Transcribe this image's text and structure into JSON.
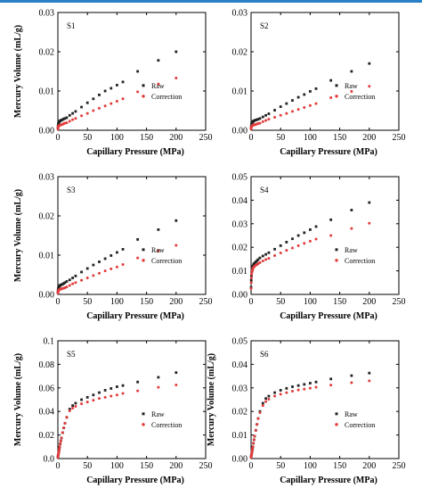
{
  "colors": {
    "raw": "#222222",
    "correction": "#e23b3b",
    "top_bar": "#2a7fc9"
  },
  "chart_data": [
    {
      "type": "scatter",
      "panel_label": "S1",
      "xlabel": "Capillary Pressure (MPa)",
      "ylabel": "Mercury Volume (mL/g)",
      "xlim": [
        0,
        250
      ],
      "ylim": [
        0,
        0.03
      ],
      "x_ticks": [
        "0",
        "50",
        "100",
        "150",
        "200",
        "250"
      ],
      "y_ticks": [
        "0.00",
        "0.01",
        "0.02",
        "0.03"
      ],
      "legend": {
        "position": "right",
        "entries": [
          "Raw",
          "Correction"
        ]
      },
      "series": [
        {
          "name": "Raw",
          "x": [
            0.1,
            0.3,
            0.6,
            1,
            1.5,
            2,
            2.5,
            3,
            4,
            5,
            6,
            8,
            10,
            12,
            15,
            20,
            25,
            30,
            40,
            50,
            60,
            70,
            80,
            90,
            100,
            110,
            135,
            170,
            200
          ],
          "y": [
            0.0005,
            0.001,
            0.0015,
            0.0018,
            0.002,
            0.0021,
            0.0022,
            0.0023,
            0.0024,
            0.0025,
            0.0026,
            0.0027,
            0.0029,
            0.003,
            0.0032,
            0.0038,
            0.0043,
            0.0048,
            0.0059,
            0.007,
            0.008,
            0.009,
            0.01,
            0.0107,
            0.0115,
            0.0123,
            0.015,
            0.0178,
            0.02
          ]
        },
        {
          "name": "Correction",
          "x": [
            0.1,
            0.3,
            0.6,
            1,
            1.5,
            2,
            2.5,
            3,
            4,
            5,
            6,
            8,
            10,
            12,
            15,
            20,
            25,
            30,
            40,
            50,
            60,
            70,
            80,
            90,
            100,
            110,
            135,
            170,
            200
          ],
          "y": [
            0.0003,
            0.0005,
            0.0008,
            0.001,
            0.0011,
            0.0012,
            0.0012,
            0.0013,
            0.0013,
            0.0014,
            0.0014,
            0.0015,
            0.0017,
            0.0018,
            0.0019,
            0.0023,
            0.0027,
            0.003,
            0.0037,
            0.0043,
            0.005,
            0.0056,
            0.0062,
            0.0068,
            0.0074,
            0.008,
            0.0098,
            0.0118,
            0.0133
          ]
        }
      ]
    },
    {
      "type": "scatter",
      "panel_label": "S2",
      "xlabel": "Capillary Pressure (MPa)",
      "ylabel": "",
      "xlim": [
        0,
        250
      ],
      "ylim": [
        0,
        0.03
      ],
      "x_ticks": [
        "0",
        "50",
        "100",
        "150",
        "200",
        "250"
      ],
      "y_ticks": [
        "0.00",
        "0.01",
        "0.02",
        "0.03"
      ],
      "legend": {
        "position": "right",
        "entries": [
          "Raw",
          "Correction"
        ]
      },
      "series": [
        {
          "name": "Raw",
          "x": [
            0.1,
            0.3,
            0.6,
            1,
            1.5,
            2,
            2.5,
            3,
            4,
            5,
            6,
            8,
            10,
            12,
            15,
            20,
            25,
            30,
            40,
            50,
            60,
            70,
            80,
            90,
            100,
            110,
            135,
            170,
            200
          ],
          "y": [
            0.0005,
            0.001,
            0.0014,
            0.0017,
            0.0019,
            0.002,
            0.0021,
            0.0022,
            0.0023,
            0.0024,
            0.0025,
            0.0026,
            0.0027,
            0.0028,
            0.003,
            0.0034,
            0.0038,
            0.0042,
            0.0051,
            0.006,
            0.0068,
            0.0076,
            0.0084,
            0.0091,
            0.0099,
            0.0106,
            0.0127,
            0.015,
            0.017
          ]
        },
        {
          "name": "Correction",
          "x": [
            0.1,
            0.3,
            0.6,
            1,
            1.5,
            2,
            2.5,
            3,
            4,
            5,
            6,
            8,
            10,
            12,
            15,
            20,
            25,
            30,
            40,
            50,
            60,
            70,
            80,
            90,
            100,
            110,
            135,
            170,
            200
          ],
          "y": [
            0.0003,
            0.0005,
            0.0008,
            0.001,
            0.0011,
            0.0012,
            0.0012,
            0.0013,
            0.0013,
            0.0014,
            0.0014,
            0.0015,
            0.0016,
            0.0017,
            0.0018,
            0.0022,
            0.0025,
            0.0028,
            0.0033,
            0.0038,
            0.0043,
            0.0048,
            0.0053,
            0.0058,
            0.0063,
            0.0068,
            0.0083,
            0.0099,
            0.0112
          ]
        }
      ]
    },
    {
      "type": "scatter",
      "panel_label": "S3",
      "xlabel": "Capillary Pressure (MPa)",
      "ylabel": "Mercury Volume (mL/g)",
      "xlim": [
        0,
        250
      ],
      "ylim": [
        0,
        0.03
      ],
      "x_ticks": [
        "0",
        "50",
        "100",
        "150",
        "200",
        "250"
      ],
      "y_ticks": [
        "0.00",
        "0.01",
        "0.02",
        "0.03"
      ],
      "legend": {
        "position": "right",
        "entries": [
          "Raw",
          "Correction"
        ]
      },
      "series": [
        {
          "name": "Raw",
          "x": [
            0.1,
            0.3,
            0.6,
            1,
            1.5,
            2,
            2.5,
            3,
            4,
            5,
            6,
            8,
            10,
            12,
            15,
            20,
            25,
            30,
            40,
            50,
            60,
            70,
            80,
            90,
            100,
            110,
            135,
            170,
            200
          ],
          "y": [
            0.0005,
            0.001,
            0.0014,
            0.0017,
            0.0019,
            0.002,
            0.0021,
            0.0022,
            0.0023,
            0.0024,
            0.0025,
            0.0026,
            0.0028,
            0.003,
            0.0033,
            0.0037,
            0.0042,
            0.0047,
            0.0057,
            0.0066,
            0.0075,
            0.0083,
            0.0091,
            0.0099,
            0.0107,
            0.0115,
            0.014,
            0.0165,
            0.0188
          ]
        },
        {
          "name": "Correction",
          "x": [
            0.1,
            0.3,
            0.6,
            1,
            1.5,
            2,
            2.5,
            3,
            4,
            5,
            6,
            8,
            10,
            12,
            15,
            20,
            25,
            30,
            40,
            50,
            60,
            70,
            80,
            90,
            100,
            110,
            135,
            170,
            200
          ],
          "y": [
            0.0003,
            0.0005,
            0.0008,
            0.001,
            0.0011,
            0.0012,
            0.0012,
            0.0013,
            0.0013,
            0.0014,
            0.0014,
            0.0015,
            0.0016,
            0.0017,
            0.0019,
            0.0023,
            0.0027,
            0.003,
            0.0036,
            0.0042,
            0.0048,
            0.0054,
            0.006,
            0.0065,
            0.007,
            0.0076,
            0.0093,
            0.0111,
            0.0125
          ]
        }
      ]
    },
    {
      "type": "scatter",
      "panel_label": "S4",
      "xlabel": "Capillary Pressure (MPa)",
      "ylabel": "",
      "xlim": [
        0,
        250
      ],
      "ylim": [
        0,
        0.05
      ],
      "x_ticks": [
        "0",
        "50",
        "100",
        "150",
        "200",
        "250"
      ],
      "y_ticks": [
        "0.00",
        "0.01",
        "0.02",
        "0.03",
        "0.04",
        "0.05"
      ],
      "legend": {
        "position": "right",
        "entries": [
          "Raw",
          "Correction"
        ]
      },
      "series": [
        {
          "name": "Raw",
          "x": [
            0.1,
            0.3,
            0.6,
            1,
            1.5,
            2,
            2.5,
            3,
            4,
            5,
            6,
            8,
            10,
            12,
            15,
            20,
            25,
            30,
            40,
            50,
            60,
            70,
            80,
            90,
            100,
            110,
            135,
            170,
            200
          ],
          "y": [
            0.003,
            0.006,
            0.008,
            0.0095,
            0.0105,
            0.0112,
            0.0117,
            0.012,
            0.0126,
            0.013,
            0.0133,
            0.0138,
            0.0143,
            0.0148,
            0.0155,
            0.0163,
            0.017,
            0.0177,
            0.0192,
            0.0207,
            0.0222,
            0.0236,
            0.025,
            0.0262,
            0.0275,
            0.0288,
            0.0317,
            0.0358,
            0.039
          ]
        },
        {
          "name": "Correction",
          "x": [
            0.1,
            0.3,
            0.6,
            1,
            1.5,
            2,
            2.5,
            3,
            4,
            5,
            6,
            8,
            10,
            12,
            15,
            20,
            25,
            30,
            40,
            50,
            60,
            70,
            80,
            90,
            100,
            110,
            135,
            170,
            200
          ],
          "y": [
            0.0025,
            0.005,
            0.007,
            0.0085,
            0.0095,
            0.0102,
            0.0106,
            0.011,
            0.0114,
            0.0117,
            0.012,
            0.0124,
            0.0127,
            0.013,
            0.0135,
            0.0142,
            0.0148,
            0.0153,
            0.0165,
            0.0176,
            0.0187,
            0.0197,
            0.0207,
            0.0217,
            0.0226,
            0.0235,
            0.025,
            0.028,
            0.0302
          ]
        }
      ]
    },
    {
      "type": "scatter",
      "panel_label": "S5",
      "xlabel": "Capillary Pressure (MPa)",
      "ylabel": "Mercury Volume (mL/g)",
      "xlim": [
        0,
        250
      ],
      "ylim": [
        0,
        0.1
      ],
      "x_ticks": [
        "0",
        "50",
        "100",
        "150",
        "200",
        "250"
      ],
      "y_ticks": [
        "0.0",
        "0.02",
        "0.04",
        "0.06",
        "0.08",
        "0.1"
      ],
      "legend": {
        "position": "right",
        "entries": [
          "Raw",
          "Correction"
        ]
      },
      "series": [
        {
          "name": "Raw",
          "x": [
            0.1,
            0.3,
            0.6,
            1,
            1.5,
            2,
            2.5,
            3,
            4,
            5,
            6,
            8,
            10,
            12,
            15,
            20,
            25,
            30,
            40,
            50,
            60,
            70,
            80,
            90,
            100,
            110,
            135,
            170,
            200
          ],
          "y": [
            0.001,
            0.002,
            0.003,
            0.004,
            0.0055,
            0.007,
            0.0085,
            0.01,
            0.0125,
            0.015,
            0.0175,
            0.022,
            0.026,
            0.03,
            0.035,
            0.042,
            0.045,
            0.047,
            0.05,
            0.052,
            0.054,
            0.056,
            0.058,
            0.0595,
            0.061,
            0.062,
            0.065,
            0.069,
            0.073
          ]
        },
        {
          "name": "Correction",
          "x": [
            0.1,
            0.3,
            0.6,
            1,
            1.5,
            2,
            2.5,
            3,
            4,
            5,
            6,
            8,
            10,
            12,
            15,
            20,
            25,
            30,
            40,
            50,
            60,
            70,
            80,
            90,
            100,
            110,
            135,
            170,
            200
          ],
          "y": [
            0.001,
            0.002,
            0.003,
            0.004,
            0.0055,
            0.007,
            0.0085,
            0.01,
            0.0125,
            0.015,
            0.0175,
            0.022,
            0.026,
            0.03,
            0.035,
            0.0405,
            0.0428,
            0.0443,
            0.0465,
            0.048,
            0.0495,
            0.051,
            0.052,
            0.053,
            0.054,
            0.0553,
            0.0575,
            0.0605,
            0.0625
          ]
        }
      ]
    },
    {
      "type": "scatter",
      "panel_label": "S6",
      "xlabel": "Capillary Pressure (MPa)",
      "ylabel": "Mercury Volume (mL/g)",
      "xlim": [
        0,
        250
      ],
      "ylim": [
        0,
        0.05
      ],
      "x_ticks": [
        "0",
        "50",
        "100",
        "150",
        "200",
        "250"
      ],
      "y_ticks": [
        "0.00",
        "0.01",
        "0.02",
        "0.03",
        "0.04",
        "0.05"
      ],
      "legend": {
        "position": "right",
        "entries": [
          "Raw",
          "Correction"
        ]
      },
      "series": [
        {
          "name": "Raw",
          "x": [
            0.1,
            0.3,
            0.6,
            1,
            1.5,
            2,
            2.5,
            3,
            4,
            5,
            6,
            8,
            10,
            12,
            15,
            20,
            25,
            30,
            40,
            50,
            60,
            70,
            80,
            90,
            100,
            110,
            135,
            170,
            200
          ],
          "y": [
            0.0005,
            0.001,
            0.0015,
            0.002,
            0.0028,
            0.0035,
            0.0042,
            0.005,
            0.0065,
            0.008,
            0.0095,
            0.012,
            0.0145,
            0.017,
            0.02,
            0.0235,
            0.0255,
            0.0265,
            0.028,
            0.029,
            0.0298,
            0.0305,
            0.031,
            0.0315,
            0.032,
            0.0325,
            0.0338,
            0.0352,
            0.0363
          ]
        },
        {
          "name": "Correction",
          "x": [
            0.1,
            0.3,
            0.6,
            1,
            1.5,
            2,
            2.5,
            3,
            4,
            5,
            6,
            8,
            10,
            12,
            15,
            20,
            25,
            30,
            40,
            50,
            60,
            70,
            80,
            90,
            100,
            110,
            135,
            170,
            200
          ],
          "y": [
            0.0005,
            0.001,
            0.0015,
            0.002,
            0.0028,
            0.0035,
            0.0042,
            0.005,
            0.0065,
            0.008,
            0.0095,
            0.012,
            0.0145,
            0.017,
            0.0195,
            0.0225,
            0.0242,
            0.0252,
            0.0265,
            0.0273,
            0.028,
            0.0286,
            0.0291,
            0.0295,
            0.0299,
            0.0303,
            0.0312,
            0.0322,
            0.033
          ]
        }
      ]
    }
  ]
}
